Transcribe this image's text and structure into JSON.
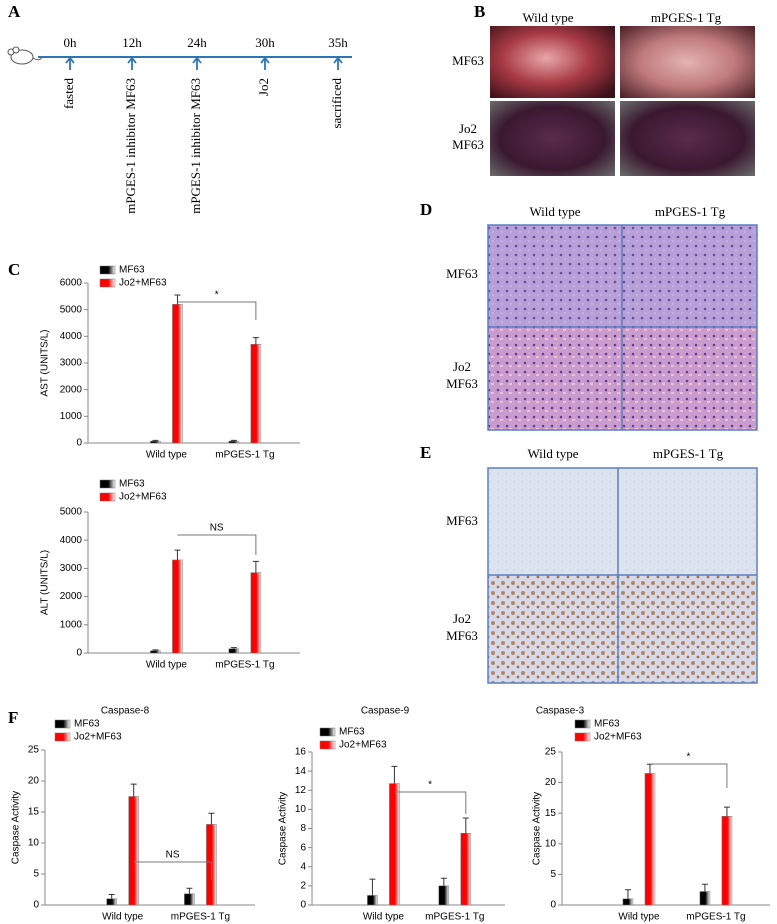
{
  "panel_labels": [
    "A",
    "B",
    "C",
    "D",
    "E",
    "F"
  ],
  "timeline": {
    "times": [
      "0h",
      "12h",
      "24h",
      "30h",
      "35h"
    ],
    "events": [
      "fasted",
      "mPGES-1 inhibitor MF63",
      "mPGES-1 inhibitor MF63",
      "Jo2",
      "sacrificed"
    ]
  },
  "panel_B": {
    "columns": [
      "Wild type",
      "mPGES-1 Tg"
    ],
    "rows": [
      [
        "MF63"
      ],
      [
        "Jo2",
        "MF63"
      ]
    ]
  },
  "panel_D": {
    "columns": [
      "Wild type",
      "mPGES-1 Tg"
    ],
    "rows": [
      [
        "MF63"
      ],
      [
        "Jo2",
        "MF63"
      ]
    ]
  },
  "panel_E": {
    "columns": [
      "Wild type",
      "mPGES-1 Tg"
    ],
    "rows": [
      [
        "MF63"
      ],
      [
        "Jo2",
        "MF63"
      ]
    ]
  },
  "chart_data": [
    {
      "type": "bar",
      "ylabel": "AST (UNITS/L)",
      "categories": [
        "Wild type",
        "mPGES-1 Tg"
      ],
      "series": [
        {
          "name": "MF63",
          "color": "#000000",
          "values": [
            70,
            70
          ],
          "errors": [
            30,
            30
          ]
        },
        {
          "name": "Jo2+MF63",
          "color": "#ff0000",
          "values": [
            5200,
            3700
          ],
          "errors": [
            350,
            250
          ]
        }
      ],
      "ylim": [
        0,
        6000
      ],
      "yticks": [
        0,
        1000,
        2000,
        3000,
        4000,
        5000,
        6000
      ],
      "annotation": "*"
    },
    {
      "type": "bar",
      "ylabel": "ALT (UNITS/L)",
      "categories": [
        "Wild type",
        "mPGES-1 Tg"
      ],
      "series": [
        {
          "name": "MF63",
          "color": "#000000",
          "values": [
            80,
            150
          ],
          "errors": [
            30,
            40
          ]
        },
        {
          "name": "Jo2+MF63",
          "color": "#ff0000",
          "values": [
            3300,
            2850
          ],
          "errors": [
            350,
            400
          ]
        }
      ],
      "ylim": [
        0,
        5000
      ],
      "yticks": [
        0,
        1000,
        2000,
        3000,
        4000,
        5000
      ],
      "annotation": "NS"
    },
    {
      "type": "bar",
      "title": "Caspase-8",
      "ylabel": "Caspase Activity",
      "categories": [
        "Wild type",
        "mPGES-1 Tg"
      ],
      "series": [
        {
          "name": "MF63",
          "color": "#000000",
          "values": [
            1,
            1.8
          ],
          "errors": [
            0.7,
            0.9
          ]
        },
        {
          "name": "Jo2+MF63",
          "color": "#ff0000",
          "values": [
            17.5,
            13
          ],
          "errors": [
            2,
            1.8
          ]
        }
      ],
      "ylim": [
        0,
        25
      ],
      "yticks": [
        0,
        5,
        10,
        15,
        20,
        25
      ],
      "annotation": "NS"
    },
    {
      "type": "bar",
      "title": "Caspase-9",
      "ylabel": "Caspase Activity",
      "categories": [
        "Wild type",
        "mPGES-1 Tg"
      ],
      "series": [
        {
          "name": "MF63",
          "color": "#000000",
          "values": [
            1,
            2
          ],
          "errors": [
            1.7,
            0.8
          ]
        },
        {
          "name": "Jo2+MF63",
          "color": "#ff0000",
          "values": [
            12.7,
            7.5
          ],
          "errors": [
            1.8,
            1.6
          ]
        }
      ],
      "ylim": [
        0,
        16
      ],
      "yticks": [
        0,
        2,
        4,
        6,
        8,
        10,
        12,
        14,
        16
      ],
      "annotation": "*"
    },
    {
      "type": "bar",
      "title": "Caspase-3",
      "ylabel": "Caspase Activity",
      "categories": [
        "Wild type",
        "mPGES-1 Tg"
      ],
      "series": [
        {
          "name": "MF63",
          "color": "#000000",
          "values": [
            1,
            2.2
          ],
          "errors": [
            1.5,
            1.2
          ]
        },
        {
          "name": "Jo2+MF63",
          "color": "#ff0000",
          "values": [
            21.5,
            14.5
          ],
          "errors": [
            1.5,
            1.5
          ]
        }
      ],
      "ylim": [
        0,
        25
      ],
      "yticks": [
        0,
        5,
        10,
        15,
        20,
        25
      ],
      "annotation": "*"
    }
  ]
}
